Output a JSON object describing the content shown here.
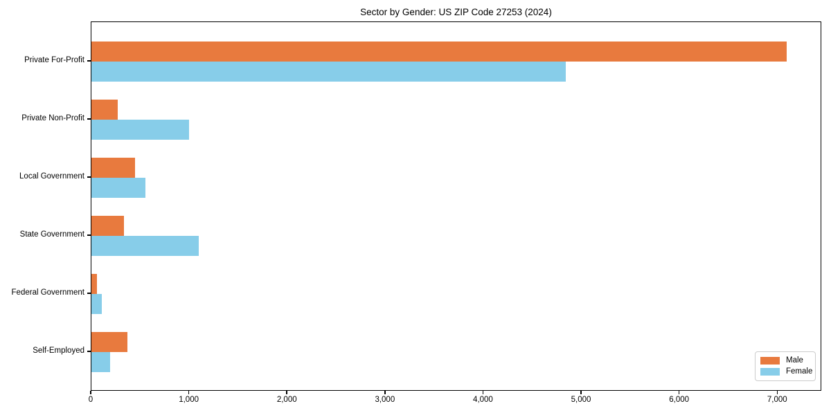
{
  "figure": {
    "title": "Sector by Gender: US ZIP Code 27253 (2024)"
  },
  "colors": {
    "male": "#e87a3e",
    "female": "#87cde9",
    "axis": "#000000",
    "text": "#000000",
    "legend_border": "#cccccc",
    "background": "#ffffff"
  },
  "legend": {
    "position": "lower right",
    "items": [
      {
        "label": "Male",
        "color": "#e87a3e"
      },
      {
        "label": "Female",
        "color": "#87cde9"
      }
    ]
  },
  "chart_data": {
    "type": "bar",
    "orientation": "horizontal",
    "title": "Sector by Gender: US ZIP Code 27253 (2024)",
    "categories": [
      "Private For-Profit",
      "Private Non-Profit",
      "Local Government",
      "State Government",
      "Federal Government",
      "Self-Employed"
    ],
    "series": [
      {
        "name": "Male",
        "color": "#e87a3e",
        "values": [
          7100,
          270,
          445,
          330,
          60,
          365
        ]
      },
      {
        "name": "Female",
        "color": "#87cde9",
        "values": [
          4845,
          1000,
          550,
          1100,
          105,
          190
        ]
      }
    ],
    "xlabel": "",
    "ylabel": "",
    "xlim": [
      0,
      7450
    ],
    "x_ticks": [
      0,
      1000,
      2000,
      3000,
      4000,
      5000,
      6000,
      7000
    ],
    "x_tick_labels": [
      "0",
      "1,000",
      "2,000",
      "3,000",
      "4,000",
      "5,000",
      "6,000",
      "7,000"
    ],
    "grid": false,
    "legend_position": "lower right"
  }
}
